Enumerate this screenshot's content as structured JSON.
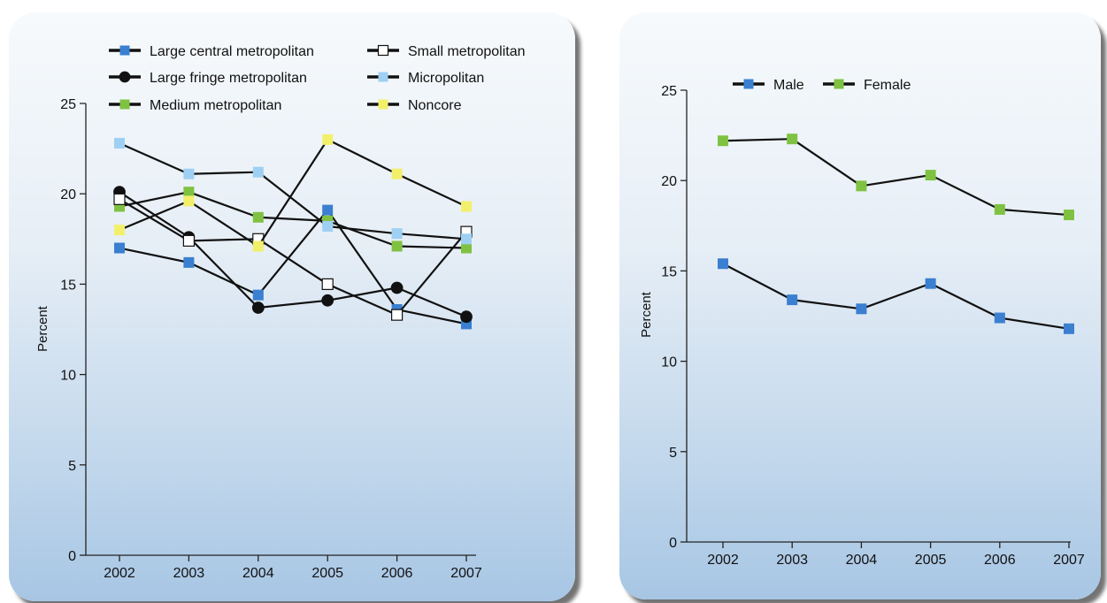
{
  "chart_data": [
    {
      "type": "line",
      "title": "",
      "xlabel": "",
      "ylabel": "Percent",
      "x": [
        "2002",
        "2003",
        "2004",
        "2005",
        "2006",
        "2007"
      ],
      "ylim": [
        0,
        25
      ],
      "yticks": [
        0,
        5,
        10,
        15,
        20,
        25
      ],
      "grid": false,
      "legend_position": "top",
      "series": [
        {
          "name": "Large central metropolitan",
          "values": [
            17.0,
            16.2,
            14.4,
            19.1,
            13.6,
            12.8
          ],
          "color": "#3a7fd0",
          "marker": "square"
        },
        {
          "name": "Large fringe metropolitan",
          "values": [
            20.1,
            17.6,
            13.7,
            14.1,
            14.8,
            13.2
          ],
          "color": "#111111",
          "marker": "circle"
        },
        {
          "name": "Medium metropolitan",
          "values": [
            19.3,
            20.1,
            18.7,
            18.5,
            17.1,
            17.0
          ],
          "color": "#7fc242",
          "marker": "square"
        },
        {
          "name": "Small metropolitan",
          "values": [
            19.7,
            17.4,
            17.5,
            15.0,
            13.3,
            17.9
          ],
          "color": "#ffffff",
          "marker": "square-open"
        },
        {
          "name": "Micropolitan",
          "values": [
            22.8,
            21.1,
            21.2,
            18.2,
            17.8,
            17.5
          ],
          "color": "#9ed0f3",
          "marker": "square"
        },
        {
          "name": "Noncore",
          "values": [
            18.0,
            19.6,
            17.1,
            23.0,
            21.1,
            19.3
          ],
          "color": "#f2f06a",
          "marker": "square"
        }
      ]
    },
    {
      "type": "line",
      "title": "",
      "xlabel": "",
      "ylabel": "Percent",
      "x": [
        "2002",
        "2003",
        "2004",
        "2005",
        "2006",
        "2007"
      ],
      "ylim": [
        0,
        25
      ],
      "yticks": [
        0,
        5,
        10,
        15,
        20,
        25
      ],
      "grid": false,
      "legend_position": "top",
      "series": [
        {
          "name": "Male",
          "values": [
            15.4,
            13.4,
            12.9,
            14.3,
            12.4,
            11.8
          ],
          "color": "#3a7fd0",
          "marker": "square"
        },
        {
          "name": "Female",
          "values": [
            22.2,
            22.3,
            19.7,
            20.3,
            18.4,
            18.1
          ],
          "color": "#7fc242",
          "marker": "square"
        }
      ]
    }
  ]
}
